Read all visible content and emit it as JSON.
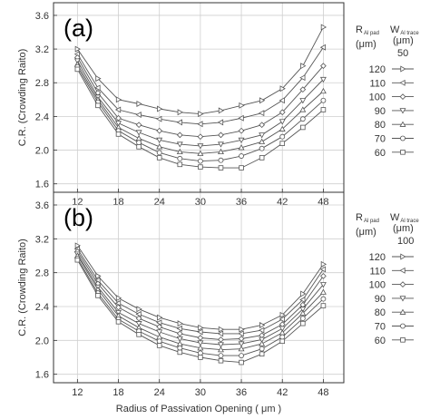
{
  "chart_data": [
    {
      "type": "line",
      "panel_label": "(a)",
      "ylabel": "C.R. (Crowding Raito)",
      "xlabel": "",
      "xlim": [
        8.5,
        51
      ],
      "ylim": [
        1.5,
        3.75
      ],
      "xticks": [
        12,
        18,
        24,
        30,
        36,
        42,
        48
      ],
      "yticks": [
        1.6,
        2.0,
        2.4,
        2.8,
        3.2,
        3.6
      ],
      "x": [
        12,
        15,
        18,
        21,
        24,
        27,
        30,
        33,
        36,
        39,
        42,
        45,
        48
      ],
      "grid": true,
      "legend": {
        "placement": "right",
        "col1_main": "R",
        "col1_sub": "Al pad",
        "col2_main": "W",
        "col2_sub": "Al trace",
        "unit": "(μm)",
        "w_value": "50"
      },
      "series": [
        {
          "name": "120",
          "marker": "triangle-right",
          "values": [
            3.2,
            2.85,
            2.6,
            2.55,
            2.49,
            2.45,
            2.43,
            2.47,
            2.53,
            2.59,
            2.73,
            3.0,
            3.46
          ]
        },
        {
          "name": "110",
          "marker": "triangle-left",
          "values": [
            3.14,
            2.74,
            2.48,
            2.42,
            2.37,
            2.33,
            2.31,
            2.33,
            2.38,
            2.44,
            2.59,
            2.86,
            3.22
          ]
        },
        {
          "name": "100",
          "marker": "diamond",
          "values": [
            3.1,
            2.68,
            2.38,
            2.3,
            2.23,
            2.18,
            2.16,
            2.18,
            2.23,
            2.3,
            2.45,
            2.72,
            3.0
          ]
        },
        {
          "name": "90",
          "marker": "triangle-down",
          "values": [
            3.06,
            2.63,
            2.32,
            2.21,
            2.12,
            2.07,
            2.05,
            2.07,
            2.12,
            2.18,
            2.34,
            2.59,
            2.84
          ]
        },
        {
          "name": "80",
          "marker": "triangle-up",
          "values": [
            3.02,
            2.6,
            2.27,
            2.14,
            2.04,
            1.98,
            1.96,
            1.98,
            2.03,
            2.1,
            2.25,
            2.48,
            2.7
          ]
        },
        {
          "name": "70",
          "marker": "circle",
          "values": [
            2.99,
            2.57,
            2.23,
            2.09,
            1.97,
            1.9,
            1.87,
            1.88,
            1.93,
            2.02,
            2.16,
            2.37,
            2.59
          ]
        },
        {
          "name": "60",
          "marker": "square",
          "values": [
            2.96,
            2.53,
            2.19,
            2.04,
            1.91,
            1.83,
            1.8,
            1.79,
            1.79,
            1.91,
            2.08,
            2.27,
            2.48
          ]
        }
      ]
    },
    {
      "type": "line",
      "panel_label": "(b)",
      "ylabel": "C.R. (Crowding Raito)",
      "xlabel": "Radius of Passivation Opening ( μm )",
      "xlim": [
        8.5,
        51
      ],
      "ylim": [
        1.5,
        3.75
      ],
      "xticks": [
        12,
        18,
        24,
        30,
        36,
        42,
        48
      ],
      "yticks": [
        1.6,
        2.0,
        2.4,
        2.8,
        3.2,
        3.6
      ],
      "x": [
        12,
        15,
        18,
        21,
        24,
        27,
        30,
        33,
        36,
        39,
        42,
        45,
        48
      ],
      "grid": true,
      "legend": {
        "placement": "right",
        "col1_main": "R",
        "col1_sub": "Al pad",
        "col2_main": "W",
        "col2_sub": "Al trace",
        "unit": "(μm)",
        "w_value": "100"
      },
      "series": [
        {
          "name": "120",
          "marker": "triangle-right",
          "values": [
            3.12,
            2.76,
            2.5,
            2.37,
            2.27,
            2.2,
            2.15,
            2.13,
            2.13,
            2.18,
            2.3,
            2.55,
            2.9
          ]
        },
        {
          "name": "110",
          "marker": "triangle-left",
          "values": [
            3.08,
            2.71,
            2.44,
            2.31,
            2.21,
            2.14,
            2.1,
            2.08,
            2.08,
            2.12,
            2.25,
            2.48,
            2.84
          ]
        },
        {
          "name": "100",
          "marker": "diamond",
          "values": [
            3.05,
            2.67,
            2.39,
            2.26,
            2.16,
            2.08,
            2.03,
            2.01,
            2.02,
            2.06,
            2.19,
            2.42,
            2.76
          ]
        },
        {
          "name": "90",
          "marker": "triangle-down",
          "values": [
            3.02,
            2.63,
            2.33,
            2.2,
            2.1,
            2.02,
            1.97,
            1.95,
            1.96,
            2.01,
            2.14,
            2.37,
            2.66
          ]
        },
        {
          "name": "80",
          "marker": "triangle-up",
          "values": [
            3.0,
            2.6,
            2.29,
            2.15,
            2.04,
            1.96,
            1.91,
            1.89,
            1.9,
            1.96,
            2.09,
            2.32,
            2.57
          ]
        },
        {
          "name": "70",
          "marker": "circle",
          "values": [
            2.97,
            2.56,
            2.25,
            2.11,
            1.99,
            1.91,
            1.85,
            1.82,
            1.82,
            1.9,
            2.04,
            2.26,
            2.49
          ]
        },
        {
          "name": "60",
          "marker": "square",
          "values": [
            2.95,
            2.53,
            2.22,
            2.07,
            1.94,
            1.86,
            1.8,
            1.76,
            1.74,
            1.84,
            1.99,
            2.2,
            2.41
          ]
        }
      ]
    }
  ]
}
